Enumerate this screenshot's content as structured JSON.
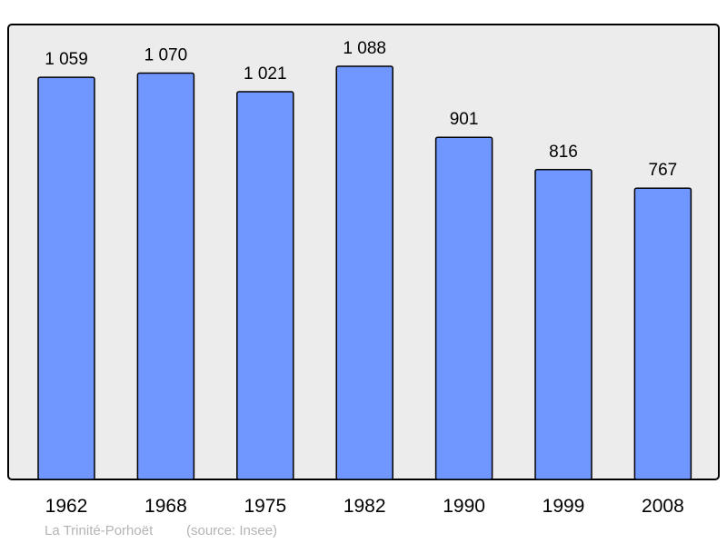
{
  "chart_data": {
    "type": "bar",
    "categories": [
      "1962",
      "1968",
      "1975",
      "1982",
      "1990",
      "1999",
      "2008"
    ],
    "values": [
      1059,
      1070,
      1021,
      1088,
      901,
      816,
      767
    ],
    "data_labels": [
      "1 059",
      "1 070",
      "1 021",
      "1 088",
      "901",
      "816",
      "767"
    ],
    "title": "",
    "xlabel": "",
    "ylabel": "",
    "ylim": [
      0,
      1088
    ],
    "grid": false,
    "colors": {
      "bar": "#7096ff",
      "plot_background": "#ececec",
      "source_text": "#b4b4b4"
    }
  },
  "caption": {
    "place": "La Trinité-Porhoët",
    "source": "(source: Insee)"
  }
}
